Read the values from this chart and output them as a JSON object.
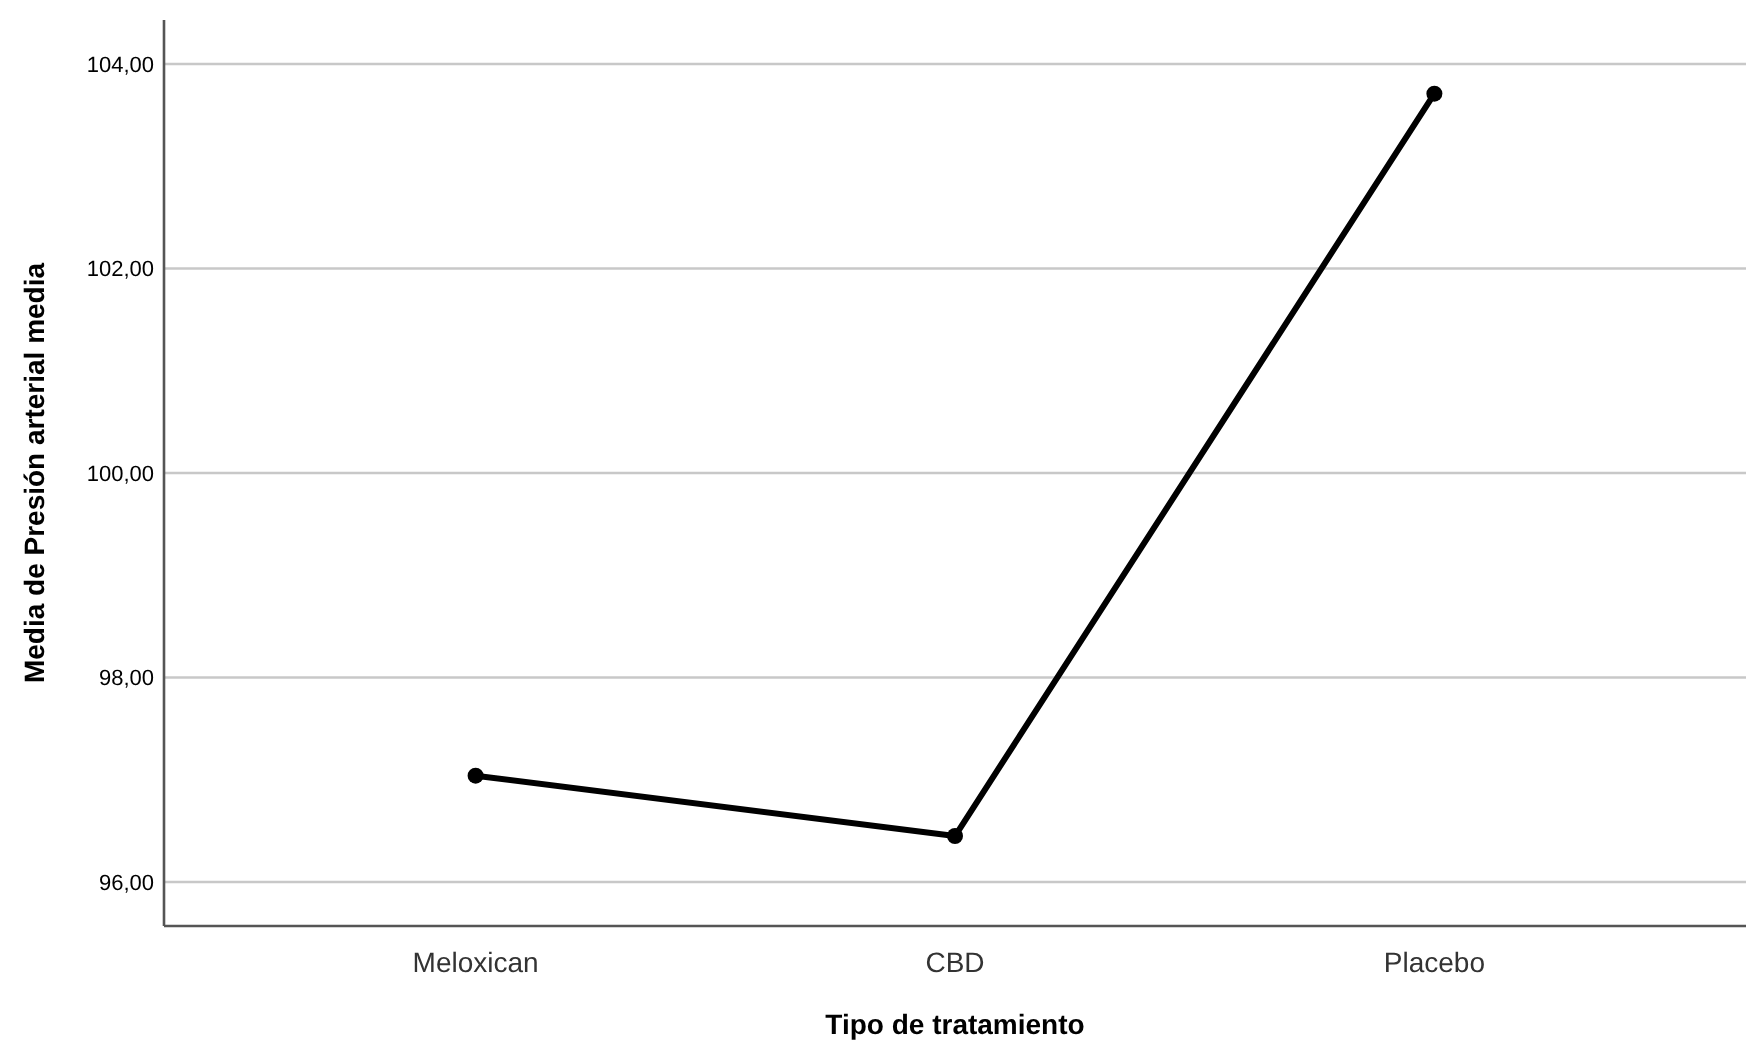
{
  "chart_data": {
    "type": "line",
    "xlabel": "Tipo de tratamiento",
    "ylabel": "Media de Presión arterial media",
    "categories": [
      "Meloxican",
      "CBD",
      "Placebo"
    ],
    "series": [
      {
        "color": "#000000",
        "values": [
          97.04,
          96.45,
          103.71
        ]
      }
    ],
    "ylim": [
      95.57,
      104.43
    ],
    "yticks": [
      {
        "value": 96,
        "label": "96,00"
      },
      {
        "value": 98,
        "label": "98,00"
      },
      {
        "value": 100,
        "label": "100,00"
      },
      {
        "value": 102,
        "label": "102,00"
      },
      {
        "value": 104,
        "label": "104,00"
      }
    ],
    "grid": "y",
    "marker": "circle",
    "line_style": "solid"
  }
}
